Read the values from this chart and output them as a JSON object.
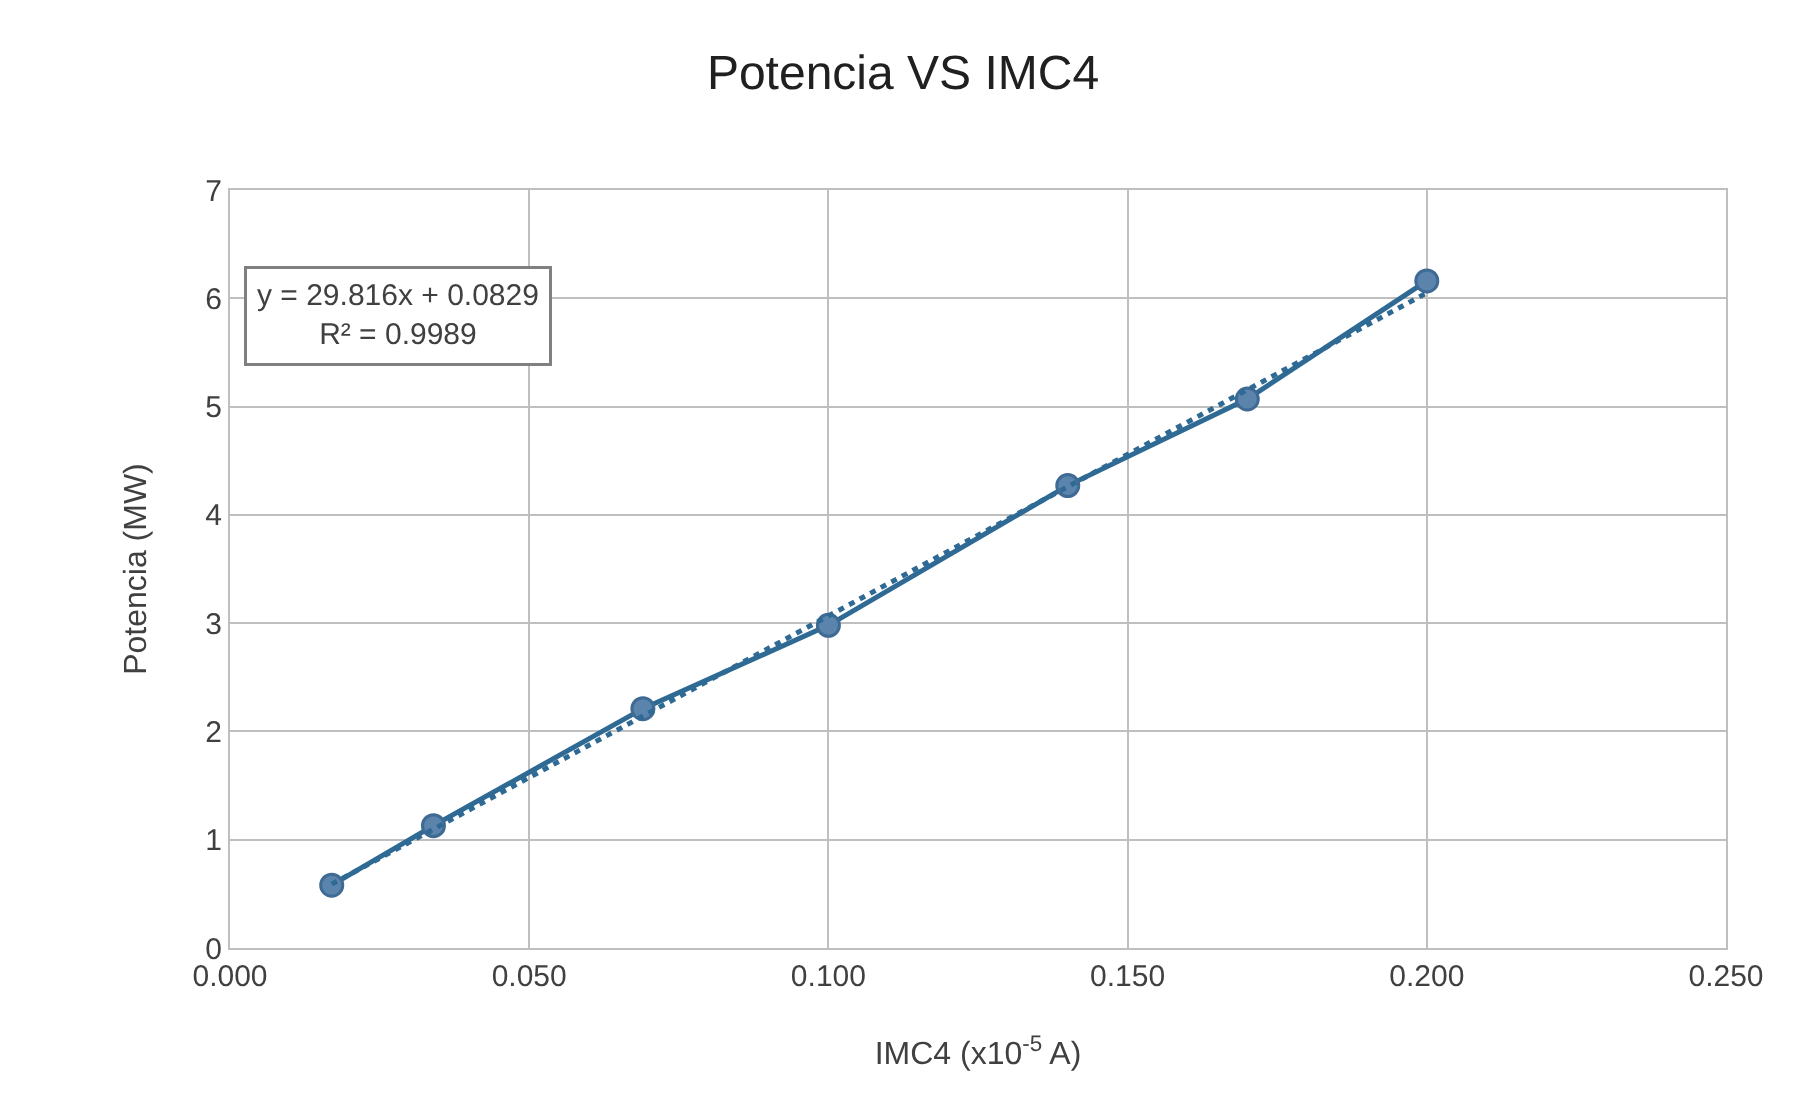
{
  "chart_data": {
    "type": "line",
    "title": "Potencia VS IMC4",
    "xlabel": "IMC4 (x10$^{-5}$ A)",
    "ylabel": "Potencia (MW)",
    "annotations": [
      "y = 29.816x + 0.0829\nR² = 0.9989"
    ],
    "xlim": [
      0,
      0.25
    ],
    "xticks": [
      {
        "value": 0,
        "label": "0.000"
      },
      {
        "value": 0.05,
        "label": "0.050"
      },
      {
        "value": 0.1,
        "label": "0.100"
      },
      {
        "value": 0.15,
        "label": "0.150"
      },
      {
        "value": 0.2,
        "label": "0.200"
      },
      {
        "value": 0.25,
        "label": "0.250"
      }
    ],
    "ylim": [
      0,
      7
    ],
    "yticks": [
      0,
      1,
      2,
      3,
      4,
      5,
      6,
      7
    ],
    "grid": true,
    "series": [
      {
        "color": "#2e6a94",
        "marker": "circle",
        "line_style": "solid",
        "x": [
          0.017,
          0.034,
          0.069,
          0.1,
          0.14,
          0.17,
          0.2
        ],
        "values": [
          0.58,
          1.13,
          2.21,
          2.98,
          4.27,
          5.07,
          6.16
        ]
      },
      {
        "color": "#2e6a94",
        "marker": "none",
        "line_style": "dotted",
        "x": [
          0.017,
          0.2
        ],
        "values": [
          0.59,
          6.05
        ]
      }
    ]
  }
}
